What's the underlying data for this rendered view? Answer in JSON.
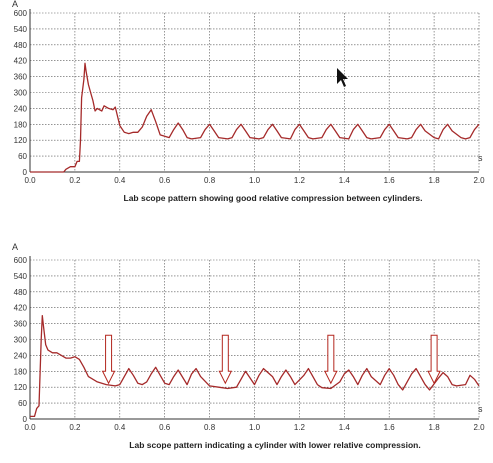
{
  "colors": {
    "trace": "#a52a2a",
    "arrow_stroke": "#b3261e",
    "arrow_fill": "#ffffff",
    "grid": "#555555",
    "axis": "#333333"
  },
  "chart_data": [
    {
      "type": "line",
      "title": "",
      "caption": "Lab scope pattern showing good relative compression between cylinders.",
      "xlabel": "s",
      "ylabel": "A",
      "xlim": [
        0,
        2.0
      ],
      "ylim": [
        0,
        600
      ],
      "xticks": [
        "0.0",
        "0.2",
        "0.4",
        "0.6",
        "0.8",
        "1.0",
        "1.2",
        "1.4",
        "1.6",
        "1.8",
        "2.0"
      ],
      "yticks": [
        "0",
        "60",
        "120",
        "180",
        "240",
        "300",
        "360",
        "420",
        "480",
        "540",
        "600"
      ],
      "grid": true,
      "series": [
        {
          "x": [
            0.0,
            0.15,
            0.16,
            0.18,
            0.2,
            0.21,
            0.22,
            0.225,
            0.23,
            0.24,
            0.245,
            0.25,
            0.26,
            0.27,
            0.28,
            0.29,
            0.3,
            0.32,
            0.33,
            0.35,
            0.37,
            0.38,
            0.4,
            0.42,
            0.44,
            0.46,
            0.48,
            0.5,
            0.52,
            0.54,
            0.56,
            0.58,
            0.62,
            0.64,
            0.66,
            0.68,
            0.7,
            0.72,
            0.76,
            0.78,
            0.8,
            0.82,
            0.84,
            0.88,
            0.9,
            0.92,
            0.94,
            0.96,
            0.98,
            1.02,
            1.04,
            1.06,
            1.08,
            1.1,
            1.12,
            1.16,
            1.18,
            1.2,
            1.22,
            1.24,
            1.26,
            1.3,
            1.32,
            1.34,
            1.36,
            1.38,
            1.42,
            1.44,
            1.46,
            1.48,
            1.5,
            1.52,
            1.56,
            1.58,
            1.6,
            1.62,
            1.64,
            1.68,
            1.7,
            1.72,
            1.74,
            1.76,
            1.8,
            1.82,
            1.84,
            1.86,
            1.88,
            1.92,
            1.94,
            1.96,
            1.98,
            2.0
          ],
          "y": [
            0,
            0,
            10,
            20,
            20,
            40,
            40,
            120,
            280,
            350,
            410,
            380,
            330,
            300,
            270,
            230,
            240,
            230,
            250,
            240,
            235,
            245,
            175,
            150,
            145,
            150,
            150,
            170,
            210,
            235,
            190,
            140,
            130,
            160,
            185,
            160,
            130,
            125,
            130,
            160,
            180,
            155,
            130,
            125,
            130,
            160,
            180,
            155,
            130,
            125,
            130,
            160,
            180,
            155,
            130,
            125,
            160,
            180,
            155,
            130,
            125,
            130,
            160,
            180,
            155,
            130,
            125,
            160,
            180,
            155,
            130,
            125,
            130,
            160,
            180,
            155,
            130,
            125,
            130,
            160,
            180,
            155,
            130,
            125,
            160,
            180,
            155,
            130,
            125,
            130,
            160,
            180
          ]
        }
      ]
    },
    {
      "type": "line",
      "title": "",
      "caption": "Lab scope pattern indicating a cylinder with lower relative compression.",
      "xlabel": "s",
      "ylabel": "A",
      "xlim": [
        0,
        2.0
      ],
      "ylim": [
        0,
        600
      ],
      "xticks": [
        "0.0",
        "0.2",
        "0.4",
        "0.6",
        "0.8",
        "1.0",
        "1.2",
        "1.4",
        "1.6",
        "1.8",
        "2.0"
      ],
      "yticks": [
        "0",
        "60",
        "120",
        "180",
        "240",
        "300",
        "360",
        "420",
        "480",
        "540",
        "600"
      ],
      "grid": true,
      "arrows_at_x": [
        0.35,
        0.87,
        1.34,
        1.8
      ],
      "series": [
        {
          "x": [
            0.0,
            0.02,
            0.03,
            0.04,
            0.05,
            0.055,
            0.06,
            0.07,
            0.08,
            0.1,
            0.12,
            0.14,
            0.16,
            0.18,
            0.2,
            0.22,
            0.24,
            0.26,
            0.3,
            0.34,
            0.38,
            0.4,
            0.42,
            0.44,
            0.46,
            0.48,
            0.5,
            0.52,
            0.54,
            0.56,
            0.58,
            0.6,
            0.62,
            0.64,
            0.66,
            0.7,
            0.72,
            0.74,
            0.76,
            0.8,
            0.84,
            0.88,
            0.92,
            0.94,
            0.96,
            0.98,
            1.0,
            1.02,
            1.04,
            1.08,
            1.1,
            1.12,
            1.14,
            1.16,
            1.18,
            1.22,
            1.24,
            1.26,
            1.28,
            1.3,
            1.34,
            1.38,
            1.4,
            1.42,
            1.44,
            1.46,
            1.48,
            1.5,
            1.52,
            1.56,
            1.58,
            1.6,
            1.62,
            1.64,
            1.66,
            1.7,
            1.72,
            1.74,
            1.76,
            1.78,
            1.82,
            1.84,
            1.86,
            1.88,
            1.9,
            1.94,
            1.96,
            1.98,
            2.0
          ],
          "y": [
            10,
            10,
            40,
            50,
            300,
            390,
            350,
            280,
            260,
            250,
            250,
            240,
            230,
            230,
            235,
            225,
            195,
            160,
            140,
            130,
            125,
            130,
            160,
            190,
            165,
            135,
            130,
            140,
            170,
            195,
            165,
            135,
            130,
            160,
            185,
            130,
            170,
            190,
            160,
            125,
            120,
            115,
            120,
            150,
            180,
            155,
            130,
            165,
            190,
            160,
            130,
            160,
            185,
            160,
            130,
            165,
            190,
            160,
            130,
            118,
            115,
            140,
            170,
            185,
            160,
            130,
            165,
            190,
            160,
            130,
            165,
            190,
            165,
            130,
            110,
            170,
            190,
            160,
            130,
            110,
            155,
            175,
            160,
            130,
            125,
            130,
            165,
            150,
            125
          ]
        }
      ]
    }
  ]
}
